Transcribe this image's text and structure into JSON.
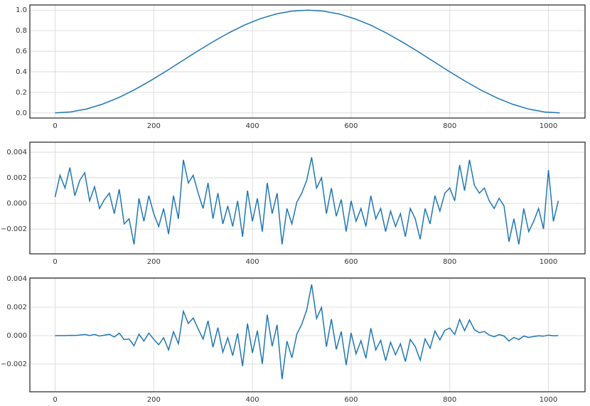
{
  "chart_data": [
    {
      "type": "line",
      "xlim": [
        -51.15,
        1074.15
      ],
      "ylim": [
        -0.05,
        1.05
      ],
      "grid": true,
      "xticks": [
        0,
        200,
        400,
        600,
        800,
        1000
      ],
      "yticks": [
        {
          "value": 0,
          "label": "0.0"
        },
        0.2,
        0.4,
        0.6,
        0.8,
        {
          "value": 1,
          "label": "1.0"
        }
      ],
      "x": [
        0,
        32,
        64,
        96,
        128,
        160,
        192,
        224,
        256,
        288,
        320,
        352,
        384,
        416,
        448,
        480,
        512,
        544,
        576,
        608,
        640,
        672,
        704,
        736,
        768,
        800,
        832,
        864,
        896,
        928,
        960,
        992,
        1023
      ],
      "series": [
        {
          "color": "#1f77b4",
          "values": [
            0,
            0.0096,
            0.0381,
            0.085,
            0.1467,
            0.2227,
            0.3093,
            0.4034,
            0.5006,
            0.5986,
            0.6919,
            0.7783,
            0.8547,
            0.9164,
            0.9624,
            0.9906,
            1.0,
            0.99,
            0.962,
            0.915,
            0.853,
            0.776,
            0.689,
            0.596,
            0.497,
            0.4,
            0.306,
            0.22,
            0.145,
            0.083,
            0.037,
            0.009,
            0
          ]
        }
      ]
    },
    {
      "type": "line",
      "xlim": [
        -51.15,
        1074.15
      ],
      "ylim": [
        -0.00394,
        0.00478
      ],
      "grid": true,
      "xticks": [
        0,
        200,
        400,
        600,
        800,
        1000
      ],
      "yticks": [
        {
          "value": -0.002,
          "label": "−0.002"
        },
        {
          "value": 0,
          "label": "0.000"
        },
        {
          "value": 0.002,
          "label": "0.002"
        },
        {
          "value": 0.004,
          "label": "0.004"
        }
      ],
      "x": [
        0,
        10,
        20,
        30,
        40,
        50,
        60,
        70,
        80,
        90,
        100,
        110,
        120,
        130,
        140,
        150,
        160,
        170,
        180,
        190,
        200,
        210,
        220,
        230,
        240,
        250,
        260,
        270,
        280,
        290,
        300,
        310,
        320,
        330,
        340,
        350,
        360,
        370,
        380,
        390,
        400,
        410,
        420,
        430,
        440,
        450,
        460,
        470,
        480,
        490,
        500,
        510,
        520,
        530,
        540,
        550,
        560,
        570,
        580,
        590,
        600,
        610,
        620,
        630,
        640,
        650,
        660,
        670,
        680,
        690,
        700,
        710,
        720,
        730,
        740,
        750,
        760,
        770,
        780,
        790,
        800,
        810,
        820,
        830,
        840,
        850,
        860,
        870,
        880,
        890,
        900,
        910,
        920,
        930,
        940,
        950,
        960,
        970,
        980,
        990,
        1000,
        1010,
        1020
      ],
      "series": [
        {
          "color": "#1f77b4",
          "values": [
            0.0005,
            0.0022,
            0.0012,
            0.0028,
            0.0006,
            0.0018,
            0.0024,
            0.0002,
            0.0013,
            -0.0004,
            0.0003,
            0.0008,
            -0.0008,
            0.0011,
            -0.0016,
            -0.0012,
            -0.0032,
            0.0004,
            -0.0014,
            0.0006,
            -0.0008,
            -0.0018,
            -0.0004,
            -0.0024,
            0.0006,
            -0.0012,
            0.0034,
            0.0016,
            0.0022,
            0.0008,
            -0.0004,
            0.0016,
            -0.0012,
            0.0008,
            -0.0016,
            -0.0002,
            -0.0018,
            0.0002,
            -0.0026,
            0.001,
            -0.0014,
            0.0004,
            -0.0022,
            0.0016,
            -0.0008,
            0.0008,
            -0.0032,
            -0.0004,
            -0.0016,
            0.0001,
            0.0008,
            0.0018,
            0.0036,
            0.0012,
            0.002,
            -0.0008,
            0.0012,
            -0.001,
            0.0003,
            -0.0022,
            0.0002,
            -0.0014,
            -0.0004,
            -0.0018,
            0.0006,
            -0.0012,
            -0.0004,
            -0.0022,
            -0.0006,
            -0.0018,
            -0.0008,
            -0.0026,
            -0.0004,
            -0.0012,
            -0.0028,
            -0.0004,
            -0.0016,
            0.0006,
            -0.0006,
            0.0008,
            0.0012,
            0.0002,
            0.003,
            0.001,
            0.0034,
            0.0014,
            0.0008,
            0.0012,
            0.0002,
            -0.0004,
            0.0004,
            -0.0002,
            -0.003,
            -0.0012,
            -0.0032,
            -0.0004,
            -0.0022,
            -0.0014,
            -0.0004,
            -0.002,
            0.0026,
            -0.0014,
            0.0002
          ]
        }
      ]
    },
    {
      "type": "line",
      "xlim": [
        -51.15,
        1074.15
      ],
      "ylim": [
        -0.00395,
        0.00405
      ],
      "grid": true,
      "xticks": [
        0,
        200,
        400,
        600,
        800,
        1000
      ],
      "yticks": [
        {
          "value": -0.002,
          "label": "−0.002"
        },
        {
          "value": 0,
          "label": "0.000"
        },
        {
          "value": 0.002,
          "label": "0.002"
        },
        {
          "value": 0.004,
          "label": "0.004"
        }
      ],
      "x": [
        0,
        10,
        20,
        30,
        40,
        50,
        60,
        70,
        80,
        90,
        100,
        110,
        120,
        130,
        140,
        150,
        160,
        170,
        180,
        190,
        200,
        210,
        220,
        230,
        240,
        250,
        260,
        270,
        280,
        290,
        300,
        310,
        320,
        330,
        340,
        350,
        360,
        370,
        380,
        390,
        400,
        410,
        420,
        430,
        440,
        450,
        460,
        470,
        480,
        490,
        500,
        510,
        520,
        530,
        540,
        550,
        560,
        570,
        580,
        590,
        600,
        610,
        620,
        630,
        640,
        650,
        660,
        670,
        680,
        690,
        700,
        710,
        720,
        730,
        740,
        750,
        760,
        770,
        780,
        790,
        800,
        810,
        820,
        830,
        840,
        850,
        860,
        870,
        880,
        890,
        900,
        910,
        920,
        930,
        940,
        950,
        960,
        970,
        980,
        990,
        1000,
        1010,
        1020
      ],
      "series": [
        {
          "color": "#1f77b4",
          "values": [
            0,
            0,
            0,
            2e-05,
            1e-05,
            4e-05,
            8e-05,
            1e-05,
            8e-05,
            -3e-05,
            3e-05,
            9e-05,
            -0.0001,
            0.00017,
            -0.00028,
            -0.00024,
            -0.00071,
            0.0001,
            -0.00038,
            0.00018,
            -0.00026,
            -0.00064,
            -0.00015,
            -0.001,
            0.00027,
            -0.00057,
            0.00171,
            0.00085,
            0.00124,
            0.00047,
            -0.00025,
            0.00104,
            -0.00081,
            0.00056,
            -0.00117,
            -0.00015,
            -0.00141,
            0.00016,
            -0.00215,
            0.00085,
            -0.00122,
            0.00035,
            -0.00199,
            0.00147,
            -0.00075,
            0.00076,
            -0.00306,
            -0.00039,
            -0.00156,
            0.0001,
            0.0008,
            0.0018,
            0.0036,
            0.0012,
            0.00198,
            -0.00079,
            0.00116,
            -0.00097,
            0.00029,
            -0.00207,
            0.00019,
            -0.00128,
            -0.00036,
            -0.00159,
            0.00052,
            -0.00101,
            -0.00033,
            -0.00176,
            -0.00047,
            -0.00135,
            -0.00058,
            -0.00182,
            -0.00027,
            -0.00077,
            -0.00172,
            -0.00023,
            -0.00089,
            0.00032,
            -0.0003,
            0.00037,
            0.00053,
            8e-05,
            0.00114,
            0.00035,
            0.0011,
            0.00041,
            0.00021,
            0.00029,
            4e-05,
            -8e-05,
            7e-05,
            -3e-05,
            -0.00038,
            -0.00013,
            -0.00028,
            -3e-05,
            -0.00013,
            -6e-05,
            -1e-05,
            -4e-05,
            3e-05,
            -1e-05,
            0
          ]
        }
      ]
    }
  ]
}
